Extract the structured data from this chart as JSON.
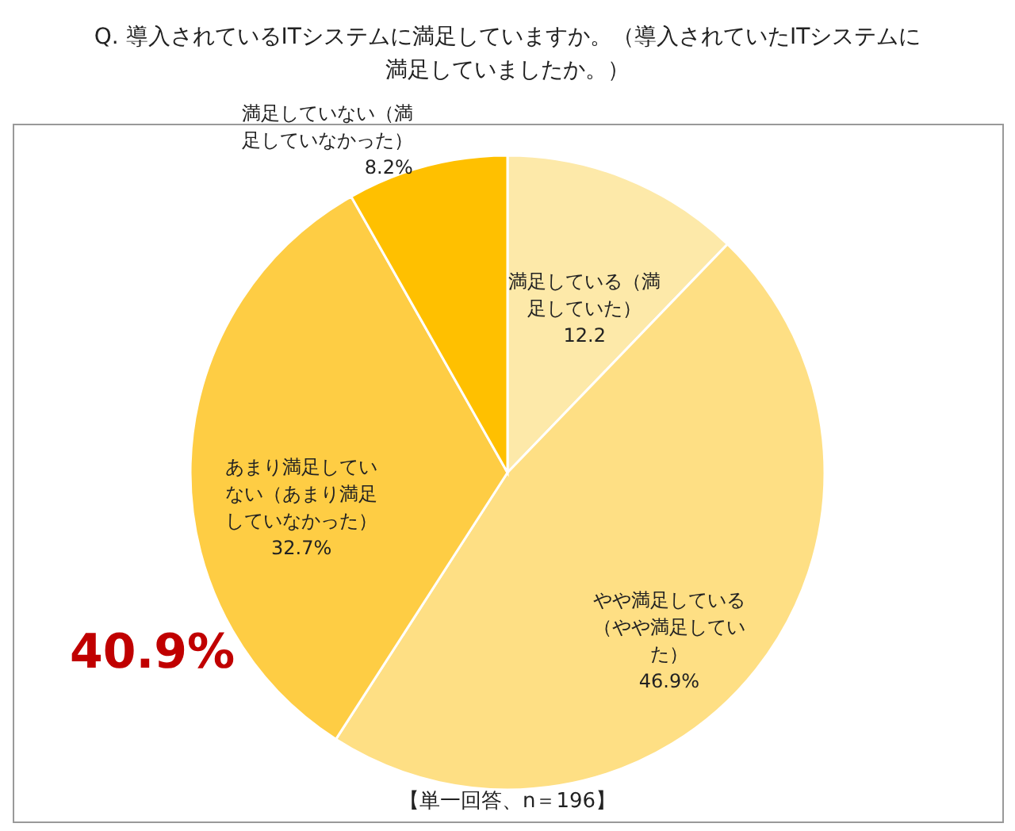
{
  "chart_data": {
    "type": "pie",
    "title": "Q. 導入されているITシステムに満足していますか。（導入されていたITシステムに満足していましたか。）",
    "categories": [
      "満足している（満足していた）",
      "やや満足している（やや満足していた）",
      "あまり満足していない（あまり満足していなかった）",
      "満足していない（満足していなかった）"
    ],
    "values": [
      12.2,
      46.9,
      32.7,
      8.2
    ],
    "colors": [
      "#fde9a9",
      "#fedf84",
      "#fecd44",
      "#ffc000"
    ],
    "value_labels": [
      "12.2",
      "46.9%",
      "32.7%",
      "8.2%"
    ],
    "annotations": [
      "40.9%",
      "【単一回答、n＝196】"
    ],
    "legend": false
  }
}
